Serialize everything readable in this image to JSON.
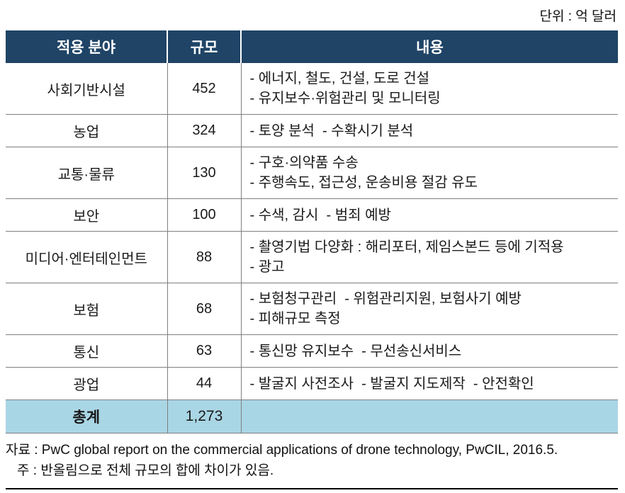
{
  "unit_label": "단위 : 억 달러",
  "table": {
    "headers": [
      "적용 분야",
      "규모",
      "내용"
    ],
    "rows": [
      {
        "field": "사회기반시설",
        "value": "452",
        "details": [
          "- 에너지, 철도, 건설, 도로 건설",
          "- 유지보수·위험관리 및 모니터링"
        ]
      },
      {
        "field": "농업",
        "value": "324",
        "details": [
          "- 토양 분석  - 수확시기 분석"
        ]
      },
      {
        "field": "교통·물류",
        "value": "130",
        "details": [
          "- 구호·의약품 수송",
          "- 주행속도, 접근성, 운송비용 절감 유도"
        ]
      },
      {
        "field": "보안",
        "value": "100",
        "details": [
          "- 수색, 감시  - 범죄 예방"
        ]
      },
      {
        "field": "미디어·엔터테인먼트",
        "value": "88",
        "details": [
          "- 촬영기법 다양화 : 해리포터, 제임스본드 등에 기적용",
          "- 광고"
        ]
      },
      {
        "field": "보험",
        "value": "68",
        "details": [
          "- 보험청구관리  - 위험관리지원, 보험사기 예방",
          "- 피해규모 측정"
        ]
      },
      {
        "field": "통신",
        "value": "63",
        "details": [
          "- 통신망 유지보수  - 무선송신서비스"
        ]
      },
      {
        "field": "광업",
        "value": "44",
        "details": [
          "- 발굴지 사전조사  - 발굴지 지도제작  - 안전확인"
        ]
      }
    ],
    "total": {
      "field": "총계",
      "value": "1,273"
    }
  },
  "footer": {
    "source": "자료 : PwC global report on the commercial applications of drone technology, PwCIL, 2016.5.",
    "note": "주 : 반올림으로 전체 규모의 합에 차이가 있음."
  },
  "colors": {
    "header_bg": "#1f4466",
    "total_bg": "#a9d6e5",
    "row_border": "#7f7f7f"
  }
}
